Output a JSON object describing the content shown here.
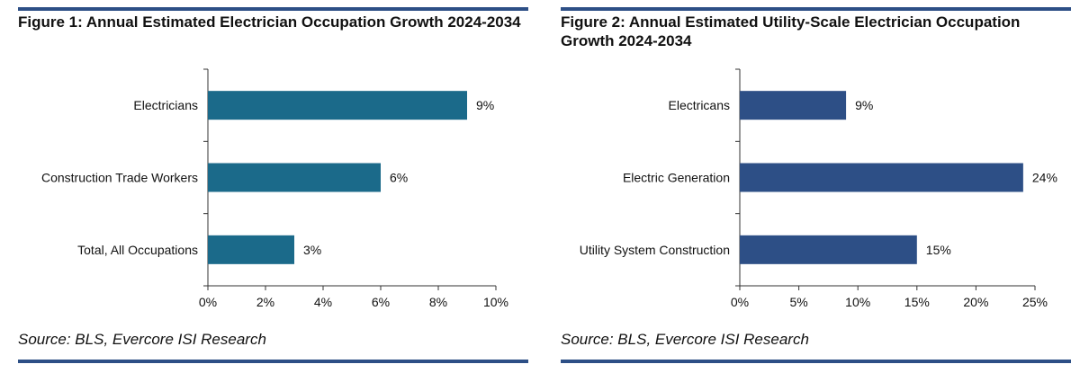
{
  "charts": [
    {
      "title": "Figure 1: Annual Estimated Electrician Occupation Growth 2024-2034",
      "source": "Source: BLS, Evercore ISI Research"
    },
    {
      "title": "Figure 2: Annual Estimated Utility-Scale Electrician Occupation Growth 2024-2034",
      "source": "Source: BLS, Evercore ISI Research"
    }
  ],
  "colors": {
    "rule": "#2d4f86",
    "bar1": "#1b6a8a",
    "bar2": "#2d4f86"
  },
  "chart_data": [
    {
      "type": "bar",
      "orientation": "horizontal",
      "title": "Figure 1: Annual Estimated Electrician Occupation Growth 2024-2034",
      "categories": [
        "Electricians",
        "Construction Trade Workers",
        "Total, All Occupations"
      ],
      "values": [
        9,
        6,
        3
      ],
      "value_labels": [
        "9%",
        "6%",
        "3%"
      ],
      "xlim": [
        0,
        10
      ],
      "xticks": [
        0,
        2,
        4,
        6,
        8,
        10
      ],
      "xtick_labels": [
        "0%",
        "2%",
        "4%",
        "6%",
        "8%",
        "10%"
      ],
      "grid": false,
      "color": "#1b6a8a"
    },
    {
      "type": "bar",
      "orientation": "horizontal",
      "title": "Figure 2: Annual Estimated Utility-Scale Electrician Occupation Growth 2024-2034",
      "categories": [
        "Electricans",
        "Electric Generation",
        "Utility System Construction"
      ],
      "values": [
        9,
        24,
        15
      ],
      "value_labels": [
        "9%",
        "24%",
        "15%"
      ],
      "xlim": [
        0,
        25
      ],
      "xticks": [
        0,
        5,
        10,
        15,
        20,
        25
      ],
      "xtick_labels": [
        "0%",
        "5%",
        "10%",
        "15%",
        "20%",
        "25%"
      ],
      "grid": false,
      "color": "#2d4f86"
    }
  ]
}
